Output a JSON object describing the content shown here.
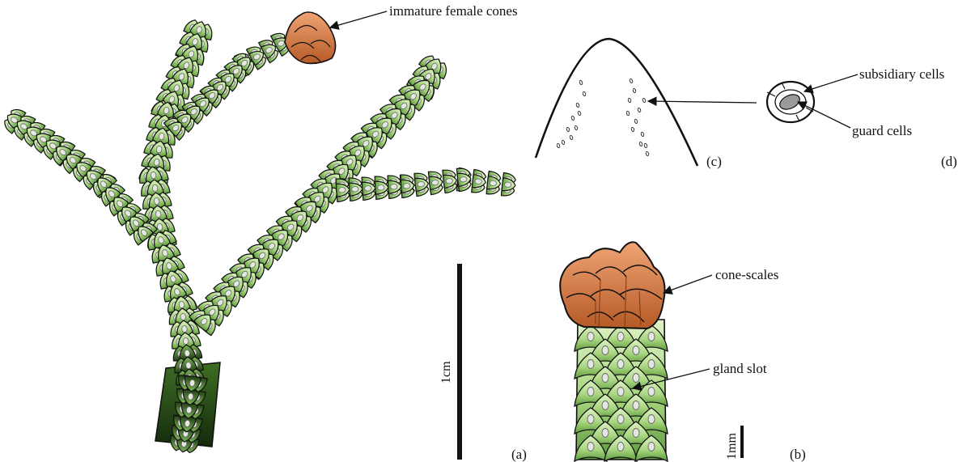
{
  "annotations": {
    "immature_female_cones": "immature female cones",
    "subsidiary_cells": "subsidiary cells",
    "guard_cells": "guard cells",
    "cone_scales": "cone-scales",
    "gland_slot": "gland slot"
  },
  "panels": {
    "a": "(a)",
    "b": "(b)",
    "c": "(c)",
    "d": "(d)"
  },
  "scale_bars": {
    "large": "1cm",
    "small": "1mm"
  },
  "colors": {
    "leaf_light": "#d4ecb6",
    "leaf_mid": "#9fd07a",
    "leaf_dark": "#2f5e1c",
    "cone": "#d9824c",
    "cone_dark": "#9c4c22",
    "gland": "#d9dcd8",
    "guard": "#9a9a9a"
  }
}
